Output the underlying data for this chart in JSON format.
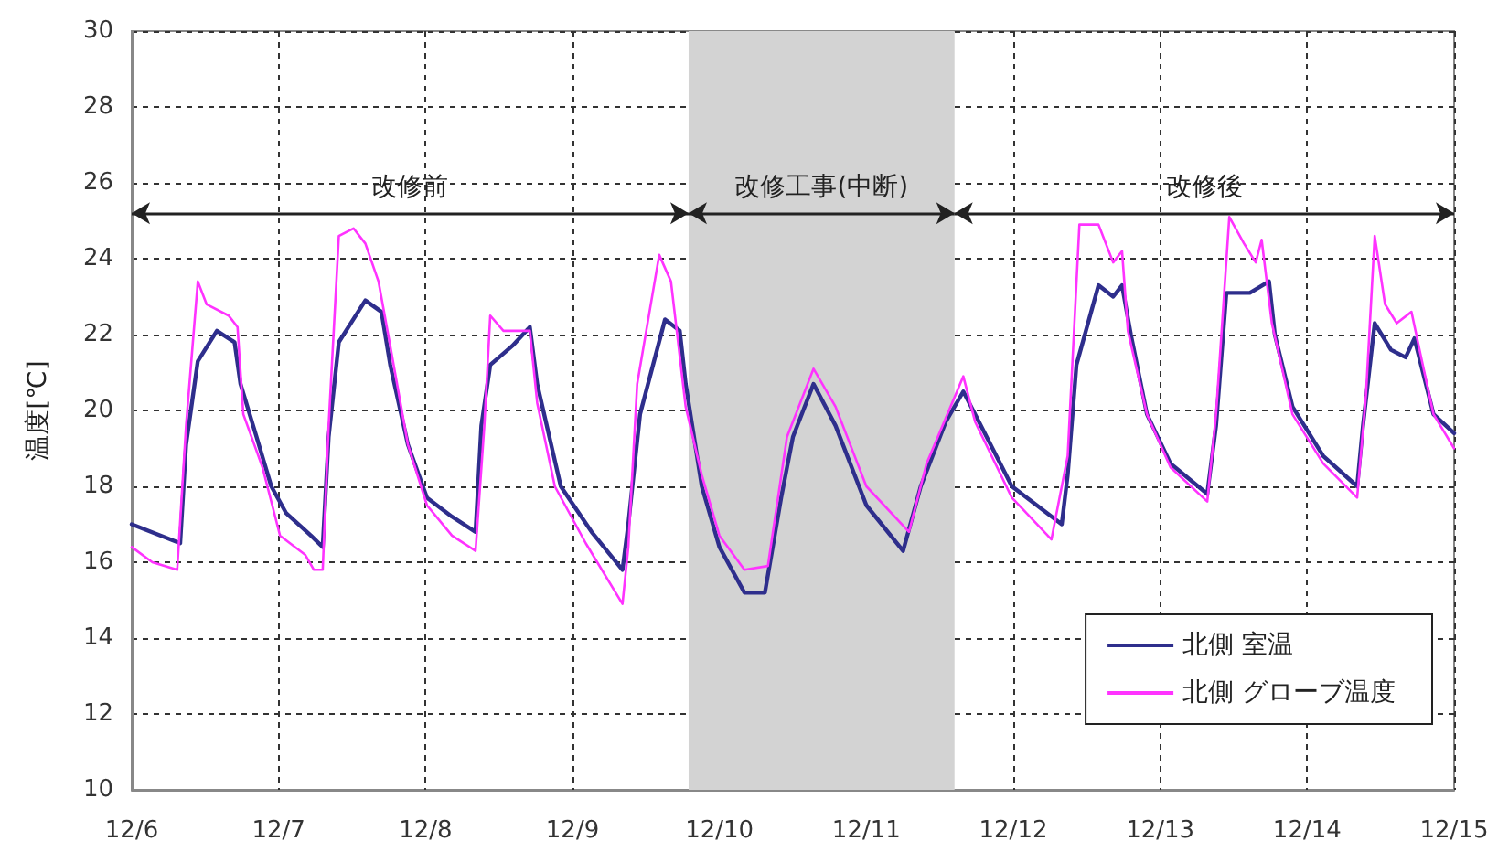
{
  "chart_data": {
    "type": "line",
    "ylabel": "温度[℃]",
    "xlim": [
      "--12-06",
      "--12-15"
    ],
    "xticks": [
      {
        "value": "--12-06",
        "label": "12/6"
      },
      {
        "value": "--12-07",
        "label": "12/7"
      },
      {
        "value": "--12-08",
        "label": "12/8"
      },
      {
        "value": "--12-09",
        "label": "12/9"
      },
      {
        "value": "--12-10",
        "label": "12/10"
      },
      {
        "value": "--12-11",
        "label": "12/11"
      },
      {
        "value": "--12-12",
        "label": "12/12"
      },
      {
        "value": "--12-13",
        "label": "12/13"
      },
      {
        "value": "--12-14",
        "label": "12/14"
      },
      {
        "value": "--12-15",
        "label": "12/15"
      }
    ],
    "ylim": [
      10,
      30
    ],
    "yticks": [
      10,
      12,
      14,
      16,
      18,
      20,
      22,
      24,
      26,
      28,
      30
    ],
    "grid": true,
    "legend": "bottom right",
    "line_style": "solid",
    "marker": "none",
    "bands": [
      {
        "axis": "x",
        "from": "--12-09T18:58",
        "to": "--12-11T14:24",
        "label": "改修工事(中断)",
        "color": "#d3d3d3"
      }
    ],
    "annotations": [
      "改修前",
      "改修後"
    ],
    "series": [
      {
        "name": "北側 室温",
        "color": "#2e2e8c",
        "x": [
          "--12-06",
          "--12-06T07:55",
          "--12-06T08:53",
          "--12-06T10:48",
          "--12-06T13:55",
          "--12-06T16:48",
          "--12-06T17:46",
          "--12-06T20:24",
          "--12-06T22:48",
          "--12-07T01:12",
          "--12-07T05:17",
          "--12-07T07:12",
          "--12-07T08:10",
          "--12-07T09:50",
          "--12-07T14:10",
          "--12-07T16:48",
          "--12-07T18:14",
          "--12-07T21:07",
          "--12-08T00:14",
          "--12-08T04:19",
          "--12-08T08:10",
          "--12-08T09:07",
          "--12-08T10:34",
          "--12-08T14:10",
          "--12-08T17:02",
          "--12-08T18:14",
          "--12-08T22:05",
          "--12-09T03:07",
          "--12-09T08:10",
          "--12-09T09:07",
          "--12-09T11:02",
          "--12-09T15:07",
          "--12-09T17:31",
          "--12-09T18:29",
          "--12-09T21:07",
          "--12-10",
          "--12-10T04:05",
          "--12-10T07:26",
          "--12-10T10:05",
          "--12-10T12:00",
          "--12-10T15:22",
          "--12-10T18:58",
          "--12-11",
          "--12-11T06:00",
          "--12-11T08:53",
          "--12-11T12:58",
          "--12-11T15:50",
          "--12-11T17:46",
          "--12-11T23:46",
          "--12-12T07:55",
          "--12-12T08:53",
          "--12-12T10:19",
          "--12-12T13:55",
          "--12-12T16:19",
          "--12-12T17:46",
          "--12-12T19:12",
          "--12-12T21:50",
          "--12-13T01:41",
          "--12-13T07:41",
          "--12-13T09:07",
          "--12-13T10:48",
          "--12-13T14:38",
          "--12-13T17:46",
          "--12-13T18:43",
          "--12-13T21:36",
          "--12-14T02:38",
          "--12-14T08:10",
          "--12-14T09:07",
          "--12-14T11:02",
          "--12-14T13:41",
          "--12-14T16:05",
          "--12-14T17:31",
          "--12-14T20:38",
          "--12-15"
        ],
        "values": [
          17.0,
          16.5,
          19.1,
          21.3,
          22.1,
          21.8,
          20.7,
          19.3,
          18.0,
          17.3,
          16.7,
          16.4,
          19.3,
          21.8,
          22.9,
          22.6,
          21.2,
          19.1,
          17.7,
          17.2,
          16.8,
          19.6,
          21.2,
          21.7,
          22.2,
          20.7,
          18.0,
          16.8,
          15.8,
          17.0,
          19.9,
          22.4,
          22.1,
          20.7,
          18.0,
          16.4,
          15.2,
          15.2,
          17.7,
          19.3,
          20.7,
          19.6,
          17.5,
          16.3,
          18.0,
          19.7,
          20.5,
          19.9,
          18.0,
          17.0,
          18.3,
          21.2,
          23.3,
          23.0,
          23.3,
          22.0,
          19.9,
          18.6,
          17.8,
          19.6,
          23.1,
          23.1,
          23.4,
          22.0,
          20.1,
          18.8,
          18.0,
          19.6,
          22.3,
          21.6,
          21.4,
          21.9,
          19.9,
          19.4
        ]
      },
      {
        "name": "北側 グローブ温度",
        "color": "#ff33ff",
        "x": [
          "--12-06",
          "--12-06T03:22",
          "--12-06T07:26",
          "--12-06T08:53",
          "--12-06T10:48",
          "--12-06T12:14",
          "--12-06T15:50",
          "--12-06T17:17",
          "--12-06T18:14",
          "--12-06T21:22",
          "--12-07T00:14",
          "--12-07T04:19",
          "--12-07T05:46",
          "--12-07T07:12",
          "--12-07T08:10",
          "--12-07T09:50",
          "--12-07T12:14",
          "--12-07T14:10",
          "--12-07T16:19",
          "--12-07T18:14",
          "--12-07T21:07",
          "--12-08T00:14",
          "--12-08T04:19",
          "--12-08T08:10",
          "--12-08T09:36",
          "--12-08T10:34",
          "--12-08T12:43",
          "--12-08T17:02",
          "--12-08T18:14",
          "--12-08T21:07",
          "--12-09T02:10",
          "--12-09T08:10",
          "--12-09T09:07",
          "--12-09T10:34",
          "--12-09T14:10",
          "--12-09T16:05",
          "--12-09T18:29",
          "--12-09T21:07",
          "--12-10",
          "--12-10T04:05",
          "--12-10T07:55",
          "--12-10T11:02",
          "--12-10T15:22",
          "--12-10T18:58",
          "--12-11",
          "--12-11T06:58",
          "--12-11T09:50",
          "--12-11T15:50",
          "--12-11T17:46",
          "--12-11T23:46",
          "--12-12T06:14",
          "--12-12T08:53",
          "--12-12T10:48",
          "--12-12T13:55",
          "--12-12T16:19",
          "--12-12T17:46",
          "--12-12T18:43",
          "--12-12T21:50",
          "--12-13T01:41",
          "--12-13T07:41",
          "--12-13T09:07",
          "--12-13T11:17",
          "--12-13T13:41",
          "--12-13T15:36",
          "--12-13T16:34",
          "--12-13T18:14",
          "--12-13T21:36",
          "--12-14T02:38",
          "--12-14T08:10",
          "--12-14T09:36",
          "--12-14T11:02",
          "--12-14T12:43",
          "--12-14T14:38",
          "--12-14T17:02",
          "--12-14T18:29",
          "--12-14T20:38",
          "--12-15"
        ],
        "values": [
          16.4,
          16.0,
          15.8,
          19.6,
          23.4,
          22.8,
          22.5,
          22.2,
          19.9,
          18.5,
          16.7,
          16.2,
          15.8,
          15.8,
          19.6,
          24.6,
          24.8,
          24.4,
          23.4,
          21.7,
          19.1,
          17.5,
          16.7,
          16.3,
          19.6,
          22.5,
          22.1,
          22.1,
          20.2,
          18.0,
          16.5,
          14.9,
          16.4,
          20.7,
          24.1,
          23.4,
          20.1,
          18.3,
          16.7,
          15.8,
          15.9,
          19.3,
          21.1,
          20.1,
          18.0,
          16.8,
          18.6,
          20.9,
          19.7,
          17.7,
          16.6,
          18.8,
          24.9,
          24.9,
          23.9,
          24.2,
          22.1,
          19.9,
          18.5,
          17.6,
          19.9,
          25.1,
          24.4,
          23.9,
          24.5,
          22.3,
          19.9,
          18.6,
          17.7,
          20.4,
          24.6,
          22.8,
          22.3,
          22.6,
          21.5,
          19.9,
          19.0
        ]
      }
    ]
  }
}
